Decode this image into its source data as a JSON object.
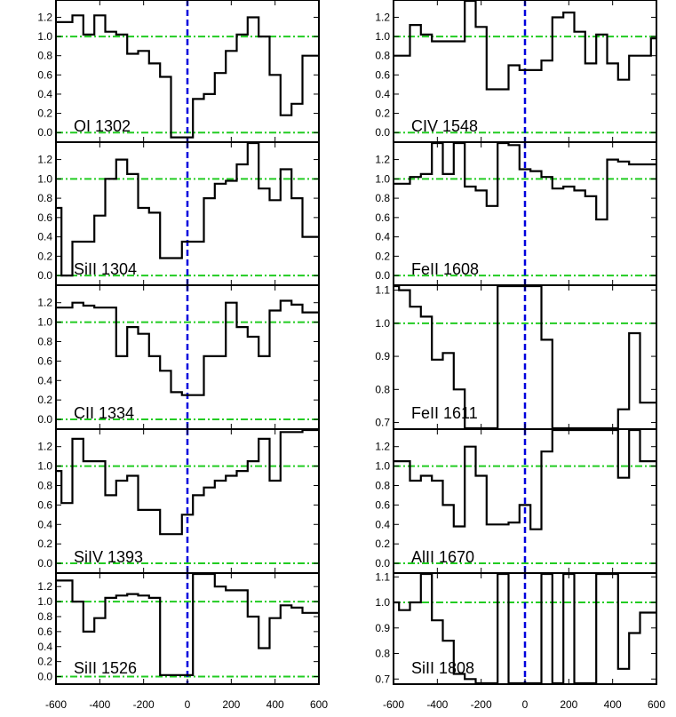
{
  "colors": {
    "zero_line": "#0000dd",
    "reference_line": "#22cc22",
    "spectrum": "#000000",
    "frame": "#000000"
  },
  "x_ticks": [
    "-600",
    "-400",
    "-200",
    "0",
    "200",
    "400",
    "600"
  ],
  "chart_data": [
    {
      "type": "line",
      "step": true,
      "label": "OI 1302",
      "xlim": [
        -600,
        600
      ],
      "ylim": [
        -0.1,
        1.38
      ],
      "yticks": [
        "0.0",
        "0.2",
        "0.4",
        "0.6",
        "0.8",
        "1.0",
        "1.2"
      ],
      "yticks_num": [
        0,
        0.2,
        0.4,
        0.6,
        0.8,
        1.0,
        1.2
      ],
      "hlines": [
        0.0,
        1.0
      ],
      "vline": 0,
      "x": [
        -600,
        -525,
        -475,
        -425,
        -375,
        -325,
        -275,
        -225,
        -175,
        -125,
        -75,
        -25,
        25,
        75,
        125,
        175,
        225,
        275,
        325,
        375,
        425,
        475,
        525,
        575
      ],
      "y": [
        1.15,
        1.22,
        1.02,
        1.22,
        1.05,
        1.02,
        0.82,
        0.85,
        0.72,
        0.58,
        -0.05,
        -0.05,
        0.35,
        0.4,
        0.62,
        0.85,
        1.02,
        1.2,
        1.0,
        0.6,
        0.18,
        0.3,
        0.8,
        0.8
      ]
    },
    {
      "type": "line",
      "step": true,
      "label": "SiII 1304",
      "xlim": [
        -600,
        600
      ],
      "ylim": [
        -0.1,
        1.38
      ],
      "yticks": [
        "0.0",
        "0.2",
        "0.4",
        "0.6",
        "0.8",
        "1.0",
        "1.2"
      ],
      "yticks_num": [
        0,
        0.2,
        0.4,
        0.6,
        0.8,
        1.0,
        1.2
      ],
      "hlines": [
        0.0,
        1.0
      ],
      "vline": 0,
      "x": [
        -600,
        -575,
        -550,
        -525,
        -475,
        -425,
        -375,
        -325,
        -275,
        -225,
        -175,
        -125,
        -75,
        -25,
        25,
        75,
        125,
        175,
        225,
        275,
        325,
        375,
        425,
        475,
        525,
        575
      ],
      "y": [
        0.7,
        0.0,
        0.0,
        0.35,
        0.35,
        0.62,
        1.0,
        1.2,
        1.05,
        0.7,
        0.65,
        0.18,
        0.18,
        0.35,
        0.35,
        0.8,
        0.95,
        0.98,
        1.15,
        1.38,
        0.9,
        0.78,
        1.1,
        0.8,
        0.4,
        0.4
      ]
    },
    {
      "type": "line",
      "step": true,
      "label": "CII 1334",
      "xlim": [
        -600,
        600
      ],
      "ylim": [
        -0.1,
        1.38
      ],
      "yticks": [
        "0.0",
        "0.2",
        "0.4",
        "0.6",
        "0.8",
        "1.0",
        "1.2"
      ],
      "yticks_num": [
        0,
        0.2,
        0.4,
        0.6,
        0.8,
        1.0,
        1.2
      ],
      "hlines": [
        0.0,
        1.0
      ],
      "vline": 0,
      "x": [
        -600,
        -575,
        -525,
        -475,
        -425,
        -375,
        -325,
        -275,
        -225,
        -175,
        -125,
        -75,
        -25,
        25,
        75,
        125,
        175,
        225,
        275,
        325,
        375,
        425,
        475,
        525,
        575
      ],
      "y": [
        1.15,
        1.15,
        1.2,
        1.17,
        1.15,
        1.15,
        0.65,
        0.95,
        0.88,
        0.65,
        0.5,
        0.28,
        0.25,
        0.25,
        0.65,
        0.65,
        1.2,
        0.95,
        0.85,
        0.65,
        1.12,
        1.22,
        1.18,
        1.1,
        1.1
      ]
    },
    {
      "type": "line",
      "step": true,
      "label": "SiIV 1393",
      "xlim": [
        -600,
        600
      ],
      "ylim": [
        -0.1,
        1.38
      ],
      "yticks": [
        "0.0",
        "0.2",
        "0.4",
        "0.6",
        "0.8",
        "1.0",
        "1.2"
      ],
      "yticks_num": [
        0,
        0.2,
        0.4,
        0.6,
        0.8,
        1.0,
        1.2
      ],
      "hlines": [
        0.0,
        1.0
      ],
      "vline": 0,
      "x": [
        -600,
        -575,
        -525,
        -475,
        -425,
        -375,
        -325,
        -275,
        -225,
        -175,
        -125,
        -75,
        -25,
        25,
        75,
        125,
        175,
        225,
        275,
        325,
        375,
        425,
        475,
        525,
        575
      ],
      "y": [
        0.95,
        0.62,
        1.28,
        1.05,
        1.05,
        0.7,
        0.85,
        0.9,
        0.55,
        0.55,
        0.3,
        0.3,
        0.5,
        0.7,
        0.78,
        0.85,
        0.9,
        0.95,
        1.05,
        1.28,
        0.85,
        1.35,
        1.35,
        1.38,
        1.38
      ]
    },
    {
      "type": "line",
      "step": true,
      "label": "SiII 1526",
      "xlim": [
        -600,
        600
      ],
      "ylim": [
        -0.1,
        1.38
      ],
      "yticks": [
        "0.0",
        "0.2",
        "0.4",
        "0.6",
        "0.8",
        "1.0",
        "1.2"
      ],
      "yticks_num": [
        0,
        0.2,
        0.4,
        0.6,
        0.8,
        1.0,
        1.2
      ],
      "hlines": [
        0.0,
        1.0
      ],
      "vline": 0,
      "x": [
        -600,
        -575,
        -525,
        -475,
        -425,
        -375,
        -325,
        -275,
        -225,
        -175,
        -125,
        -75,
        -25,
        25,
        75,
        125,
        175,
        225,
        275,
        325,
        375,
        425,
        475,
        525,
        575
      ],
      "y": [
        1.28,
        1.28,
        1.0,
        0.6,
        0.78,
        1.05,
        1.08,
        1.1,
        1.08,
        1.05,
        0.02,
        0.02,
        0.02,
        1.38,
        1.38,
        1.2,
        1.15,
        1.15,
        0.8,
        0.38,
        0.78,
        0.95,
        0.92,
        0.85,
        0.85
      ]
    },
    {
      "type": "line",
      "step": true,
      "label": "CIV 1548",
      "xlim": [
        -600,
        600
      ],
      "ylim": [
        -0.1,
        1.38
      ],
      "yticks": [
        "0.0",
        "0.2",
        "0.4",
        "0.6",
        "0.8",
        "1.0",
        "1.2"
      ],
      "yticks_num": [
        0,
        0.2,
        0.4,
        0.6,
        0.8,
        1.0,
        1.2
      ],
      "hlines": [
        0.0,
        1.0
      ],
      "vline": 0,
      "x": [
        -600,
        -575,
        -525,
        -475,
        -425,
        -375,
        -325,
        -275,
        -225,
        -175,
        -125,
        -75,
        -25,
        25,
        75,
        125,
        175,
        225,
        275,
        325,
        375,
        425,
        475,
        525,
        575
      ],
      "y": [
        0.8,
        0.8,
        1.12,
        1.02,
        0.95,
        0.95,
        0.95,
        1.38,
        1.1,
        0.45,
        0.45,
        0.7,
        0.65,
        0.65,
        0.75,
        1.2,
        1.25,
        1.05,
        0.72,
        1.02,
        0.72,
        0.55,
        0.8,
        0.8,
        0.98
      ]
    },
    {
      "type": "line",
      "step": true,
      "label": "FeII 1608",
      "xlim": [
        -600,
        600
      ],
      "ylim": [
        -0.1,
        1.38
      ],
      "yticks": [
        "0.0",
        "0.2",
        "0.4",
        "0.6",
        "0.8",
        "1.0",
        "1.2"
      ],
      "yticks_num": [
        0,
        0.2,
        0.4,
        0.6,
        0.8,
        1.0,
        1.2
      ],
      "hlines": [
        0.0,
        1.0
      ],
      "vline": 0,
      "x": [
        -600,
        -575,
        -525,
        -475,
        -425,
        -375,
        -325,
        -275,
        -225,
        -175,
        -125,
        -75,
        -25,
        25,
        75,
        125,
        175,
        225,
        275,
        325,
        375,
        425,
        475,
        525,
        575
      ],
      "y": [
        0.95,
        0.95,
        1.02,
        1.05,
        1.38,
        1.05,
        1.38,
        0.92,
        0.88,
        0.72,
        1.38,
        1.35,
        1.1,
        1.08,
        1.02,
        0.9,
        0.92,
        0.88,
        0.82,
        0.58,
        1.2,
        1.18,
        1.15,
        1.15,
        1.15
      ]
    },
    {
      "type": "line",
      "step": true,
      "label": "FeII 1611",
      "xlim": [
        -600,
        600
      ],
      "ylim": [
        0.68,
        1.115
      ],
      "yticks": [
        "0.7",
        "0.8",
        "0.9",
        "1.0",
        "1.1"
      ],
      "yticks_num": [
        0.7,
        0.8,
        0.9,
        1.0,
        1.1
      ],
      "hlines": [
        1.0
      ],
      "vline": 0,
      "x": [
        -600,
        -575,
        -525,
        -475,
        -425,
        -375,
        -325,
        -275,
        -225,
        -175,
        -125,
        -75,
        -25,
        25,
        75,
        125,
        175,
        225,
        275,
        325,
        375,
        425,
        475,
        525,
        575
      ],
      "y": [
        1.12,
        1.1,
        1.05,
        1.02,
        0.89,
        0.91,
        0.8,
        0.68,
        0.68,
        0.68,
        1.12,
        1.12,
        1.12,
        1.12,
        0.95,
        0.68,
        0.68,
        0.68,
        0.68,
        0.68,
        0.68,
        0.74,
        0.97,
        0.76,
        0.76
      ]
    },
    {
      "type": "line",
      "step": true,
      "label": "AlII 1670",
      "xlim": [
        -600,
        600
      ],
      "ylim": [
        -0.1,
        1.38
      ],
      "yticks": [
        "0.0",
        "0.2",
        "0.4",
        "0.6",
        "0.8",
        "1.0",
        "1.2"
      ],
      "yticks_num": [
        0,
        0.2,
        0.4,
        0.6,
        0.8,
        1.0,
        1.2
      ],
      "hlines": [
        0.0,
        1.0
      ],
      "vline": 0,
      "x": [
        -600,
        -575,
        -525,
        -475,
        -425,
        -375,
        -325,
        -275,
        -225,
        -175,
        -125,
        -75,
        -25,
        25,
        75,
        125,
        175,
        225,
        275,
        325,
        375,
        425,
        475,
        525,
        575
      ],
      "y": [
        1.05,
        1.05,
        0.85,
        0.9,
        0.85,
        0.6,
        0.38,
        1.2,
        0.9,
        0.4,
        0.4,
        0.42,
        0.6,
        0.35,
        1.15,
        1.38,
        1.38,
        1.38,
        1.38,
        1.38,
        1.38,
        0.88,
        1.38,
        1.05,
        1.05
      ]
    },
    {
      "type": "line",
      "step": true,
      "label": "SiII 1808",
      "xlim": [
        -600,
        600
      ],
      "ylim": [
        0.68,
        1.115
      ],
      "yticks": [
        "0.7",
        "0.8",
        "0.9",
        "1.0",
        "1.1"
      ],
      "yticks_num": [
        0.7,
        0.8,
        0.9,
        1.0,
        1.1
      ],
      "hlines": [
        1.0
      ],
      "vline": 0,
      "x": [
        -600,
        -575,
        -525,
        -475,
        -425,
        -375,
        -325,
        -275,
        -225,
        -175,
        -125,
        -75,
        -25,
        25,
        75,
        125,
        175,
        225,
        275,
        325,
        375,
        425,
        475,
        525,
        575
      ],
      "y": [
        1.0,
        0.97,
        1.0,
        1.12,
        0.93,
        0.85,
        0.72,
        0.7,
        0.68,
        0.68,
        1.12,
        0.68,
        0.68,
        0.68,
        1.12,
        0.68,
        1.12,
        0.68,
        0.68,
        1.12,
        1.12,
        0.74,
        0.88,
        0.96,
        0.96
      ]
    }
  ]
}
